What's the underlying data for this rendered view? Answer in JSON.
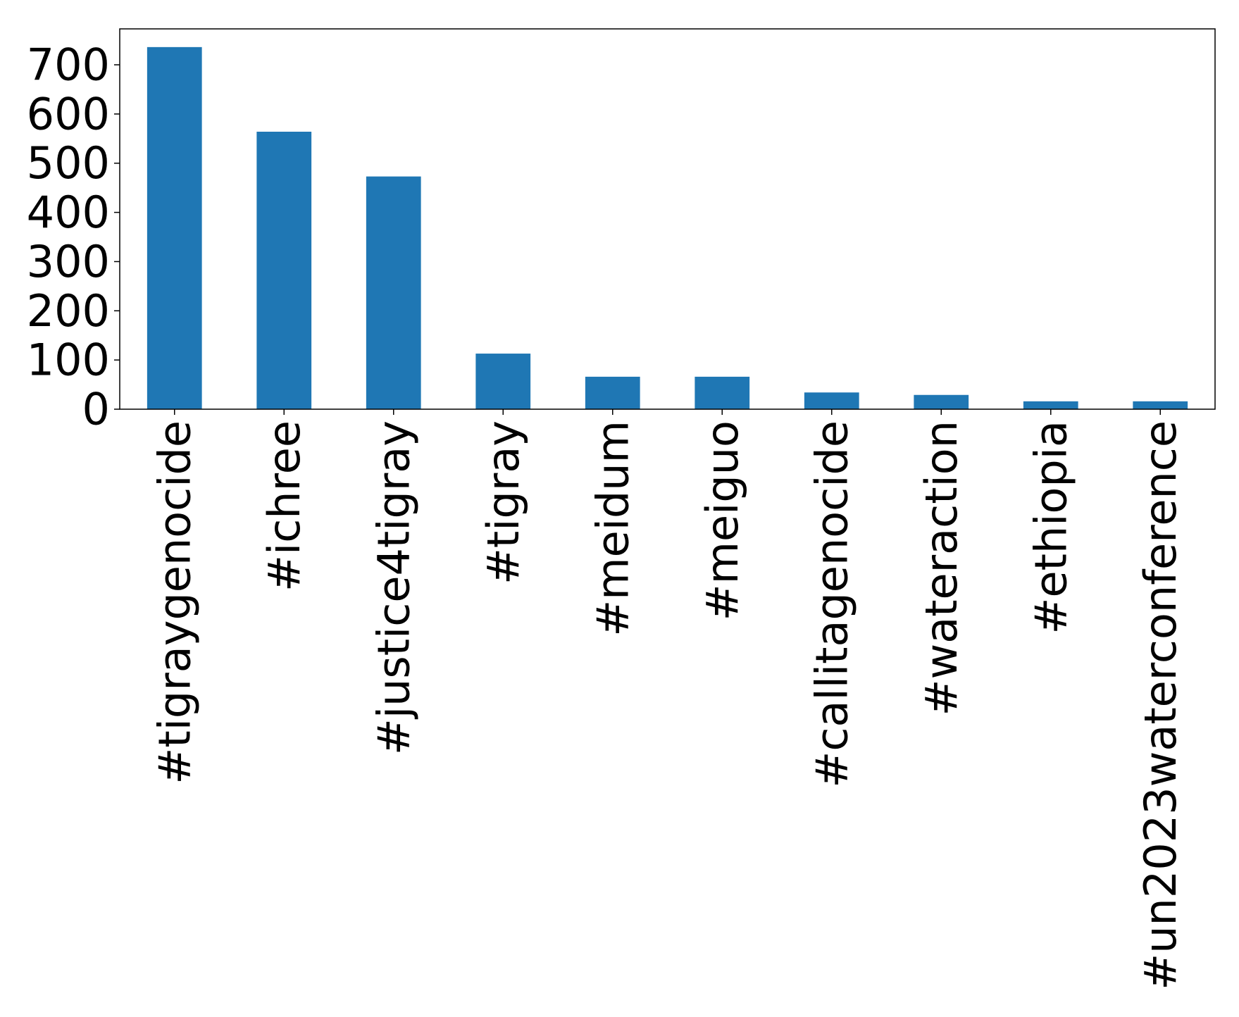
{
  "chart_data": {
    "type": "bar",
    "categories": [
      "#tigraygenocide",
      "#ichree",
      "#justice4tigray",
      "#tigray",
      "#meidum",
      "#meiguo",
      "#callitagenocide",
      "#wateraction",
      "#ethiopia",
      "#un2023waterconference"
    ],
    "values": [
      736,
      564,
      473,
      113,
      66,
      66,
      34,
      29,
      16,
      16
    ],
    "color": "#1f77b4",
    "ylim": [
      0,
      773
    ],
    "yticks": [
      0,
      100,
      200,
      300,
      400,
      500,
      600,
      700
    ],
    "grid": false
  }
}
